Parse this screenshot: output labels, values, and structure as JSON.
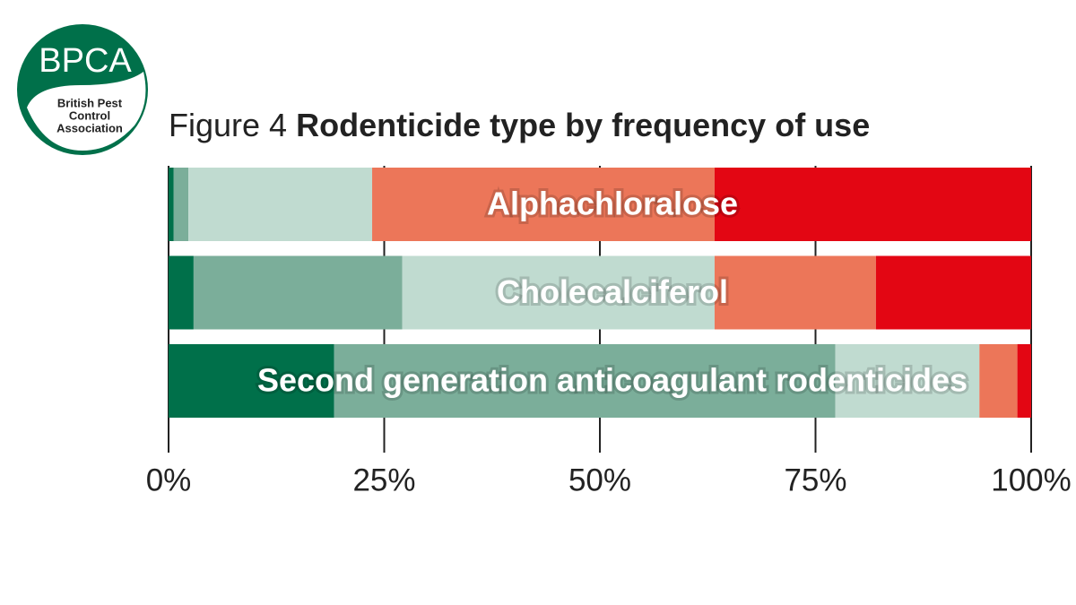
{
  "logo": {
    "abbr": "BPCA",
    "name_lines": [
      "British Pest",
      "Control",
      "Association"
    ]
  },
  "chart_data": {
    "type": "stacked-bar-horizontal",
    "figure_label": "Figure 4",
    "title": "Rodenticide type by frequency of use",
    "categories": [
      "Alphachloralose",
      "Cholecalciferol",
      "Second generation anticoagulant rodenticides"
    ],
    "series": [
      {
        "color": "#00704a",
        "values": [
          0.6,
          2.9,
          19.2
        ]
      },
      {
        "color": "#7bae9a",
        "values": [
          1.7,
          24.2,
          58.1
        ]
      },
      {
        "color": "#c0dbd0",
        "values": [
          21.3,
          36.2,
          16.7
        ]
      },
      {
        "color": "#ec7659",
        "values": [
          39.7,
          18.7,
          4.4
        ]
      },
      {
        "color": "#e30613",
        "values": [
          36.7,
          18.0,
          1.6
        ]
      }
    ],
    "xlim": [
      0,
      100
    ],
    "xticks": [
      {
        "value": 0,
        "label": "0%"
      },
      {
        "value": 25,
        "label": "25%"
      },
      {
        "value": 50,
        "label": "50%"
      },
      {
        "value": 75,
        "label": "75%"
      },
      {
        "value": 100,
        "label": "100%"
      }
    ]
  }
}
